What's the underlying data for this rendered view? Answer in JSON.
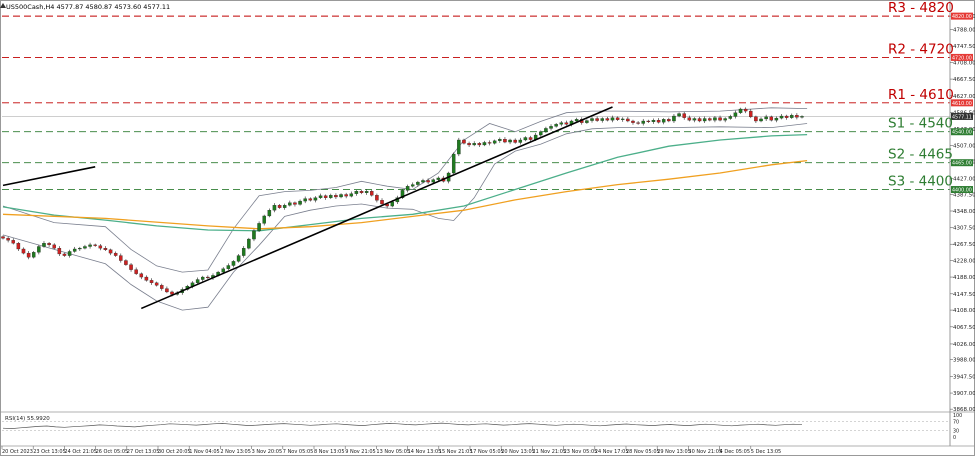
{
  "header": {
    "symbol_line": "US500Cash,H4  4577.87 4580.87 4573.60 4577.11"
  },
  "colors": {
    "bull_candle": "#1f7a1f",
    "bear_candle": "#cc2222",
    "resistance": "#c00000",
    "support": "#2e7d32",
    "ma_fast": "#4caf8a",
    "ma_slow": "#f0a020",
    "bollinger": "#7a7f8e",
    "trendline": "#000000",
    "level_tag_red": "#e53935",
    "level_tag_green": "#2e7d32",
    "grid": "#e3e3e3"
  },
  "levels": [
    {
      "id": "r3",
      "label": "R3 - 4820",
      "price": 4820,
      "tag": "4820.00",
      "type": "resistance"
    },
    {
      "id": "r2",
      "label": "R2 - 4720",
      "price": 4720,
      "tag": "4720.00",
      "type": "resistance"
    },
    {
      "id": "r1",
      "label": "R1 - 4610",
      "price": 4610,
      "tag": "4610.00",
      "type": "resistance"
    },
    {
      "id": "s1",
      "label": "S1 - 4540",
      "price": 4540,
      "tag": "4540.00",
      "type": "support"
    },
    {
      "id": "s2",
      "label": "S2 - 4465",
      "price": 4465,
      "tag": "4465.00",
      "type": "support"
    },
    {
      "id": "s3",
      "label": "S3 - 4400",
      "price": 4400,
      "tag": "4400.00",
      "type": "support"
    }
  ],
  "current_price_tag": "4577.11",
  "rsi": {
    "label": "RSI(14) 55.9920",
    "ticks": [
      "100",
      "70",
      "30",
      "0"
    ]
  },
  "chart_data": {
    "type": "candlestick",
    "title": "",
    "ylim": [
      3866,
      4830
    ],
    "y_ticks": [
      "4820.00",
      "4788.00",
      "4747.50",
      "4708.00",
      "4667.50",
      "4627.00",
      "4586.50",
      "4547.00",
      "4507.00",
      "4467.50",
      "4427.00",
      "4387.50",
      "4348.00",
      "4307.50",
      "4267.50",
      "4228.00",
      "4188.00",
      "4147.50",
      "4108.00",
      "4067.50",
      "4026.00",
      "3988.00",
      "3947.50",
      "3907.00",
      "3868.00"
    ],
    "x_ticks": [
      "20 Oct 2023",
      "23 Oct 13:05",
      "24 Oct 21:05",
      "26 Oct 05:05",
      "27 Oct 13:05",
      "30 Oct 20:05",
      "1 Nov 04:05",
      "2 Nov 13:05",
      "3 Nov 20:05",
      "7 Nov 05:05",
      "8 Nov 13:05",
      "9 Nov 21:05",
      "13 Nov 05:05",
      "14 Nov 13:05",
      "15 Nov 21:05",
      "17 Nov 05:05",
      "20 Nov 13:05",
      "21 Nov 21:05",
      "23 Nov 05:05",
      "24 Nov 17:05",
      "28 Nov 05:05",
      "29 Nov 13:05",
      "30 Nov 21:05",
      "4 Dec 05:05",
      "5 Dec 13:05"
    ],
    "closes": [
      4282,
      4277,
      4270,
      4256,
      4246,
      4236,
      4248,
      4262,
      4270,
      4266,
      4258,
      4244,
      4240,
      4250,
      4256,
      4258,
      4262,
      4266,
      4264,
      4258,
      4254,
      4246,
      4240,
      4228,
      4218,
      4206,
      4196,
      4188,
      4180,
      4174,
      4168,
      4160,
      4152,
      4146,
      4150,
      4158,
      4166,
      4174,
      4182,
      4188,
      4186,
      4192,
      4200,
      4208,
      4216,
      4226,
      4240,
      4258,
      4280,
      4300,
      4318,
      4336,
      4350,
      4362,
      4356,
      4362,
      4368,
      4364,
      4372,
      4378,
      4374,
      4380,
      4385,
      4380,
      4386,
      4382,
      4388,
      4384,
      4390,
      4396,
      4392,
      4396,
      4386,
      4374,
      4365,
      4360,
      4370,
      4380,
      4398,
      4408,
      4412,
      4418,
      4422,
      4418,
      4424,
      4428,
      4420,
      4440,
      4486,
      4520,
      4512,
      4508,
      4512,
      4508,
      4514,
      4512,
      4518,
      4522,
      4515,
      4520,
      4514,
      4520,
      4526,
      4521,
      4532,
      4540,
      4548,
      4553,
      4558,
      4562,
      4558,
      4566,
      4570,
      4562,
      4567,
      4572,
      4567,
      4572,
      4568,
      4574,
      4569,
      4571,
      4566,
      4562,
      4560,
      4566,
      4564,
      4568,
      4563,
      4570,
      4566,
      4578,
      4584,
      4574,
      4568,
      4572,
      4566,
      4572,
      4568,
      4574,
      4568,
      4572,
      4577,
      4586,
      4595,
      4590,
      4576,
      4566,
      4571,
      4576,
      4568,
      4573,
      4578,
      4574,
      4580,
      4575,
      4577
    ],
    "ma_fast": [
      [
        0,
        4358
      ],
      [
        10,
        4338
      ],
      [
        20,
        4326
      ],
      [
        30,
        4312
      ],
      [
        40,
        4302
      ],
      [
        50,
        4300
      ],
      [
        60,
        4315
      ],
      [
        70,
        4330
      ],
      [
        80,
        4340
      ],
      [
        90,
        4360
      ],
      [
        100,
        4400
      ],
      [
        110,
        4440
      ],
      [
        120,
        4478
      ],
      [
        130,
        4505
      ],
      [
        140,
        4520
      ],
      [
        150,
        4530
      ],
      [
        157,
        4533
      ]
    ],
    "ma_slow": [
      [
        0,
        4340
      ],
      [
        20,
        4330
      ],
      [
        40,
        4312
      ],
      [
        50,
        4305
      ],
      [
        60,
        4310
      ],
      [
        70,
        4320
      ],
      [
        80,
        4335
      ],
      [
        90,
        4350
      ],
      [
        100,
        4375
      ],
      [
        110,
        4395
      ],
      [
        120,
        4412
      ],
      [
        130,
        4425
      ],
      [
        140,
        4440
      ],
      [
        150,
        4460
      ],
      [
        157,
        4470
      ]
    ],
    "bb_upper": [
      [
        0,
        4360
      ],
      [
        10,
        4320
      ],
      [
        20,
        4310
      ],
      [
        25,
        4255
      ],
      [
        30,
        4215
      ],
      [
        35,
        4200
      ],
      [
        40,
        4205
      ],
      [
        45,
        4305
      ],
      [
        50,
        4385
      ],
      [
        55,
        4395
      ],
      [
        60,
        4398
      ],
      [
        65,
        4405
      ],
      [
        70,
        4420
      ],
      [
        75,
        4408
      ],
      [
        80,
        4400
      ],
      [
        85,
        4440
      ],
      [
        90,
        4520
      ],
      [
        95,
        4560
      ],
      [
        100,
        4540
      ],
      [
        105,
        4565
      ],
      [
        110,
        4586
      ],
      [
        115,
        4590
      ],
      [
        120,
        4590
      ],
      [
        130,
        4588
      ],
      [
        140,
        4590
      ],
      [
        150,
        4598
      ],
      [
        157,
        4596
      ]
    ],
    "bb_lower": [
      [
        0,
        4290
      ],
      [
        10,
        4255
      ],
      [
        20,
        4220
      ],
      [
        25,
        4170
      ],
      [
        30,
        4130
      ],
      [
        35,
        4108
      ],
      [
        40,
        4115
      ],
      [
        45,
        4200
      ],
      [
        50,
        4265
      ],
      [
        55,
        4335
      ],
      [
        60,
        4350
      ],
      [
        65,
        4360
      ],
      [
        70,
        4365
      ],
      [
        75,
        4355
      ],
      [
        80,
        4352
      ],
      [
        85,
        4330
      ],
      [
        88,
        4325
      ],
      [
        92,
        4380
      ],
      [
        96,
        4462
      ],
      [
        100,
        4493
      ],
      [
        105,
        4510
      ],
      [
        110,
        4535
      ],
      [
        115,
        4547
      ],
      [
        120,
        4550
      ],
      [
        130,
        4550
      ],
      [
        140,
        4552
      ],
      [
        150,
        4550
      ],
      [
        157,
        4560
      ]
    ],
    "trendlines": [
      {
        "from": [
          0,
          4410
        ],
        "to": [
          18,
          4455
        ]
      },
      {
        "from": [
          27,
          4112
        ],
        "to": [
          119,
          4600
        ]
      }
    ],
    "rsi_values": [
      40,
      38,
      42,
      45,
      48,
      50,
      46,
      44,
      47,
      49,
      52,
      55,
      53,
      50,
      48,
      46,
      50,
      53,
      56,
      60,
      58,
      56,
      54,
      57,
      60,
      62,
      58,
      55,
      52,
      54,
      57,
      59,
      61,
      58,
      56,
      53,
      55,
      58,
      60,
      57,
      54,
      52,
      56,
      59,
      62,
      60,
      57,
      55,
      58,
      61,
      63,
      60,
      57,
      55,
      58,
      60,
      57,
      54,
      56,
      59,
      61,
      58,
      55,
      53,
      56,
      58,
      56,
      53,
      51,
      54,
      57,
      59,
      56,
      54,
      52,
      55,
      57,
      54,
      52,
      55,
      58,
      56,
      53,
      51,
      54,
      56,
      58,
      55,
      53,
      56,
      58,
      56
    ]
  }
}
